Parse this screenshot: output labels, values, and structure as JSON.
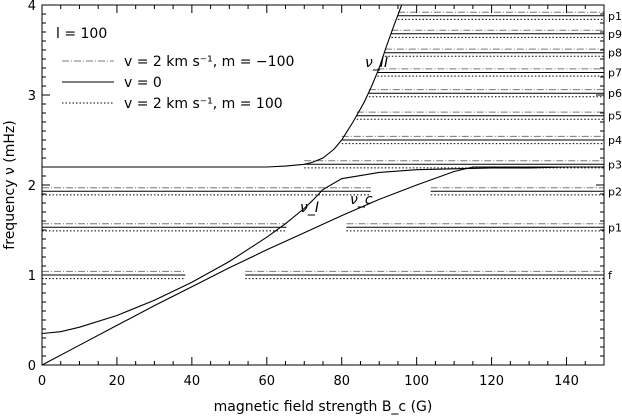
{
  "chart_data": {
    "type": "line",
    "xlabel": "magnetic field strength B_c (G)",
    "ylabel": "frequency ν (mHz)",
    "xlim": [
      0,
      150
    ],
    "ylim": [
      0,
      4
    ],
    "xticks": [
      0,
      20,
      40,
      60,
      80,
      100,
      120,
      140
    ],
    "yticks": [
      0,
      1,
      2,
      3,
      4
    ],
    "grid": false,
    "legend_position": "top-left",
    "annotation_l": "l = 100",
    "legend": [
      {
        "label": "v = 2 km s⁻¹, m = −100",
        "style": "dash-dot",
        "color": "#777777"
      },
      {
        "label": "v = 0",
        "style": "solid",
        "color": "#000000"
      },
      {
        "label": "v = 2 km s⁻¹, m = 100",
        "style": "dotted",
        "color": "#000000"
      }
    ],
    "curve_labels": {
      "nu_II": "ν_II",
      "nu_I": "ν_I",
      "nu_c": "ν_c"
    },
    "curves": [
      {
        "name": "ν_c",
        "x": [
          0,
          10,
          20,
          30,
          40,
          50,
          60,
          70,
          80,
          90,
          100,
          110,
          115,
          120,
          150
        ],
        "y": [
          0,
          0.22,
          0.44,
          0.66,
          0.87,
          1.08,
          1.28,
          1.47,
          1.66,
          1.84,
          2.0,
          2.15,
          2.2,
          2.2,
          2.2
        ]
      },
      {
        "name": "ν_I",
        "x": [
          0,
          5,
          10,
          20,
          30,
          40,
          50,
          60,
          65,
          70,
          72,
          75,
          80,
          90,
          100,
          110,
          120,
          130,
          140,
          150
        ],
        "y": [
          0.35,
          0.37,
          0.42,
          0.55,
          0.72,
          0.92,
          1.15,
          1.42,
          1.57,
          1.74,
          1.82,
          1.95,
          2.07,
          2.14,
          2.17,
          2.18,
          2.19,
          2.19,
          2.2,
          2.2
        ]
      },
      {
        "name": "ν_II",
        "x": [
          0,
          20,
          40,
          60,
          65,
          70,
          72,
          75,
          78,
          80,
          83,
          86,
          88,
          90,
          92,
          94,
          96
        ],
        "y": [
          2.2,
          2.2,
          2.2,
          2.2,
          2.21,
          2.23,
          2.25,
          2.3,
          2.4,
          2.5,
          2.7,
          2.92,
          3.1,
          3.3,
          3.55,
          3.78,
          4.0
        ]
      }
    ],
    "modes": [
      {
        "label": "f",
        "nu": 1.0
      },
      {
        "label": "p1",
        "nu": 1.53
      },
      {
        "label": "p2",
        "nu": 1.93
      },
      {
        "label": "p3",
        "nu": 2.23
      },
      {
        "label": "p4",
        "nu": 2.5
      },
      {
        "label": "p5",
        "nu": 2.77
      },
      {
        "label": "p6",
        "nu": 3.02
      },
      {
        "label": "p7",
        "nu": 3.25
      },
      {
        "label": "p8",
        "nu": 3.47
      },
      {
        "label": "p9",
        "nu": 3.68
      },
      {
        "label": "p1",
        "nu": 3.88
      }
    ],
    "mode_split_mhz": 0.04,
    "colors": {
      "solid": "#000000",
      "dashdot": "#777777",
      "dotted": "#000000"
    }
  }
}
